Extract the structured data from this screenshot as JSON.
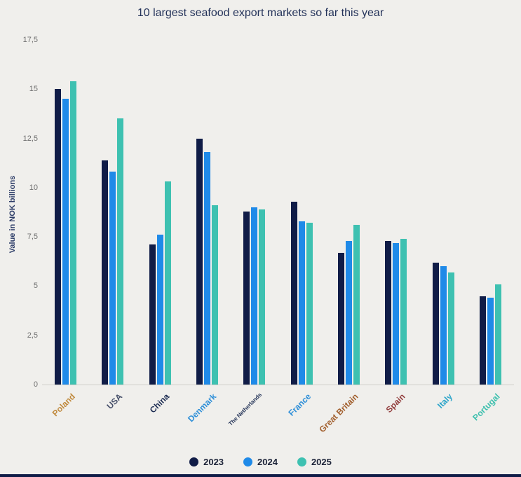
{
  "title": "10 largest seafood export markets so far this year",
  "accent_color": "#101c47",
  "chart_data": {
    "type": "bar",
    "title": "10 largest seafood export markets so far this year",
    "xlabel": "",
    "ylabel": "Value in NOK billions",
    "ylim": [
      0,
      17.5
    ],
    "grid": false,
    "legend_position": "bottom",
    "yticks": [
      {
        "label": "17,5",
        "value": 17.5
      },
      {
        "label": "15",
        "value": 15
      },
      {
        "label": "12,5",
        "value": 12.5
      },
      {
        "label": "10",
        "value": 10
      },
      {
        "label": "7,5",
        "value": 7.5
      },
      {
        "label": "5",
        "value": 5
      },
      {
        "label": "2,5",
        "value": 2.5
      },
      {
        "label": "0",
        "value": 0
      }
    ],
    "categories": [
      "Poland",
      "USA",
      "China",
      "Denmark",
      "The Netherlands",
      "France",
      "Great Britain",
      "Spain",
      "Italy",
      "Portugal"
    ],
    "category_colors": [
      "#c08a3e",
      "#47506a",
      "#1c2c52",
      "#2e8fd8",
      "#1c2c52",
      "#2e8fd8",
      "#a2602f",
      "#93403f",
      "#2ba4c9",
      "#3bbfad"
    ],
    "series": [
      {
        "name": "2023",
        "color": "#101c47",
        "values": [
          15.0,
          11.4,
          7.1,
          12.5,
          8.8,
          9.3,
          6.7,
          7.3,
          6.2,
          4.5
        ]
      },
      {
        "name": "2024",
        "color": "#1f8ae8",
        "values": [
          14.5,
          10.8,
          7.6,
          11.8,
          9.0,
          8.3,
          7.3,
          7.2,
          6.0,
          4.4
        ]
      },
      {
        "name": "2025",
        "color": "#3ec1b1",
        "values": [
          15.4,
          13.5,
          10.3,
          9.1,
          8.9,
          8.2,
          8.1,
          7.4,
          5.7,
          5.1
        ]
      }
    ]
  }
}
